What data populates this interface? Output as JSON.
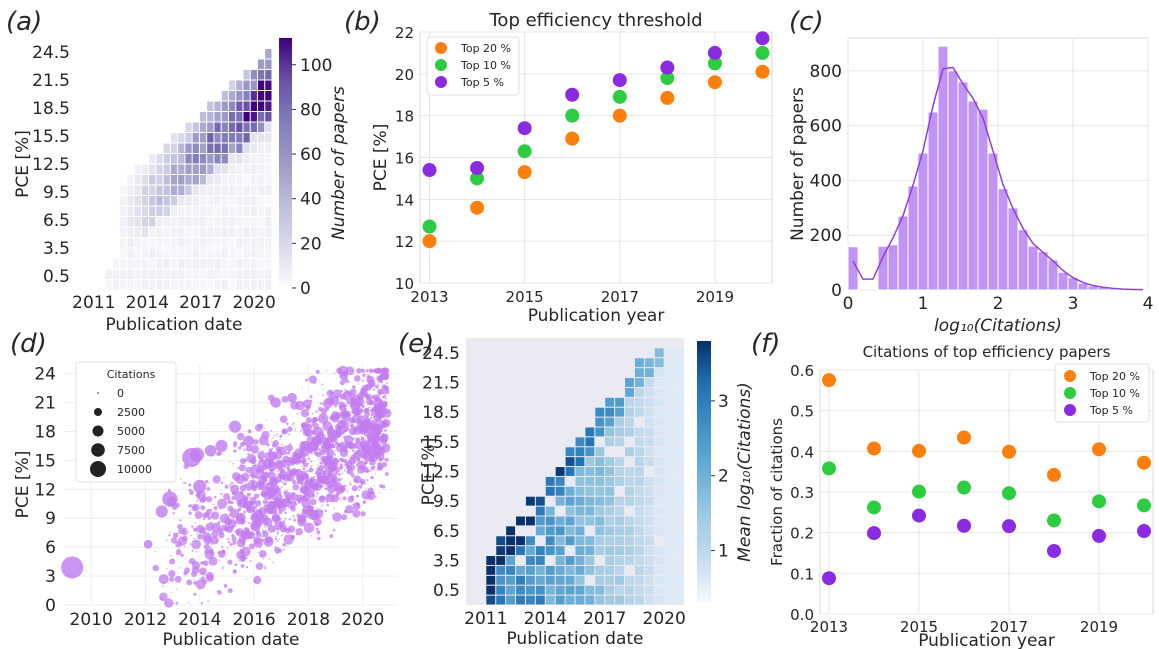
{
  "panels": [
    {
      "letter": "(a)"
    },
    {
      "letter": "(b)"
    },
    {
      "letter": "(c)"
    },
    {
      "letter": "(d)"
    },
    {
      "letter": "(e)"
    },
    {
      "letter": "(f)"
    }
  ],
  "chart_data": [
    {
      "panel": "(a)",
      "type": "heatmap",
      "xlabel": "Publication date",
      "ylabel": "PCE [%]",
      "colorbar_label": "Number of papers",
      "colormap": "Purples",
      "x_ticks": [
        "2011",
        "2014",
        "2017",
        "2020"
      ],
      "y_ticks": [
        "0.5",
        "3.5",
        "6.5",
        "9.5",
        "12.5",
        "15.5",
        "18.5",
        "21.5",
        "24.5"
      ],
      "colorbar_ticks": [
        "0",
        "20",
        "40",
        "60",
        "80",
        "100"
      ],
      "xlim": [
        2010,
        2021
      ],
      "ylim": [
        -1,
        26
      ],
      "vmax": 112
    },
    {
      "panel": "(b)",
      "type": "scatter",
      "title": "Top efficiency threshold",
      "xlabel": "Publication year",
      "ylabel": "PCE [%]",
      "xlim": [
        2012.8,
        2020.2
      ],
      "ylim": [
        10,
        22
      ],
      "x_ticks": [
        "2013",
        "2015",
        "2017",
        "2019"
      ],
      "y_ticks": [
        "10",
        "12",
        "14",
        "16",
        "18",
        "20",
        "22"
      ],
      "x": [
        2013,
        2014,
        2015,
        2016,
        2017,
        2018,
        2019,
        2020
      ],
      "series": [
        {
          "name": "Top 20 %",
          "color": "#ff7f0e",
          "values": [
            12.0,
            13.6,
            15.3,
            16.9,
            18.0,
            18.85,
            19.6,
            20.1
          ]
        },
        {
          "name": "Top 10 %",
          "color": "#2ecc40",
          "values": [
            12.7,
            15.0,
            16.3,
            18.0,
            18.9,
            19.8,
            20.5,
            21.0
          ]
        },
        {
          "name": "Top 5 %",
          "color": "#8a2be2",
          "values": [
            15.4,
            15.5,
            17.4,
            19.0,
            19.7,
            20.3,
            21.0,
            21.7
          ]
        }
      ],
      "legend": "top-left",
      "grid": true
    },
    {
      "panel": "(c)",
      "type": "bar",
      "xlabel": "log₁₀(Citations)",
      "ylabel": "Number of papers",
      "xlim": [
        0,
        4
      ],
      "ylim": [
        0,
        920
      ],
      "x_ticks": [
        "0",
        "1",
        "2",
        "3",
        "4"
      ],
      "y_ticks": [
        "0",
        "200",
        "400",
        "600",
        "800"
      ],
      "bin_width": 0.133,
      "bin_starts": [
        0.0,
        0.133,
        0.267,
        0.4,
        0.533,
        0.667,
        0.8,
        0.933,
        1.067,
        1.2,
        1.333,
        1.467,
        1.6,
        1.733,
        1.867,
        2.0,
        2.133,
        2.267,
        2.4,
        2.533,
        2.667,
        2.8,
        2.933,
        3.067,
        3.2,
        3.333,
        3.467,
        3.6,
        3.733,
        3.867
      ],
      "counts": [
        158,
        0,
        0,
        160,
        165,
        270,
        380,
        500,
        650,
        890,
        800,
        760,
        690,
        660,
        500,
        370,
        300,
        220,
        160,
        140,
        110,
        65,
        45,
        25,
        15,
        10,
        5,
        3,
        2,
        1
      ],
      "kde": true,
      "color": "#bf94f5",
      "grid": true
    },
    {
      "panel": "(d)",
      "type": "scatter",
      "xlabel": "Publication date",
      "ylabel": "PCE [%]",
      "xlim": [
        2009,
        2021.3
      ],
      "ylim": [
        0,
        25
      ],
      "x_ticks": [
        "2010",
        "2012",
        "2014",
        "2016",
        "2018",
        "2020"
      ],
      "y_ticks": [
        "0",
        "3",
        "6",
        "9",
        "12",
        "15",
        "18",
        "21",
        "24"
      ],
      "legend_title": "Citations",
      "legend_sizes": [
        "0",
        "2500",
        "5000",
        "7500",
        "10000"
      ],
      "color": "#c17bf0",
      "grid": true,
      "highlight_points": [
        {
          "x": 2009.3,
          "y": 3.9,
          "citations": 9000
        },
        {
          "x": 2012.1,
          "y": 6.3,
          "citations": 1200
        },
        {
          "x": 2012.6,
          "y": 9.7,
          "citations": 2500
        },
        {
          "x": 2012.9,
          "y": 11.0,
          "citations": 4200
        },
        {
          "x": 2013.7,
          "y": 15.3,
          "citations": 6500
        },
        {
          "x": 2013.9,
          "y": 15.6,
          "citations": 3500
        },
        {
          "x": 2014.0,
          "y": 12.3,
          "citations": 3000
        },
        {
          "x": 2014.4,
          "y": 16.0,
          "citations": 2200
        },
        {
          "x": 2014.8,
          "y": 16.5,
          "citations": 2500
        },
        {
          "x": 2015.3,
          "y": 18.5,
          "citations": 2500
        },
        {
          "x": 2015.8,
          "y": 17.0,
          "citations": 2000
        },
        {
          "x": 2016.8,
          "y": 21.0,
          "citations": 1700
        },
        {
          "x": 2017.4,
          "y": 21.5,
          "citations": 1500
        },
        {
          "x": 2019.3,
          "y": 23.8,
          "citations": 1200
        }
      ]
    },
    {
      "panel": "(e)",
      "type": "heatmap",
      "xlabel": "Publication date",
      "ylabel": "PCE [%]",
      "colorbar_label": "Mean log₁₀(Citations)",
      "colormap": "Blues",
      "x_ticks": [
        "2011",
        "2014",
        "2017",
        "2020"
      ],
      "y_ticks": [
        "0.5",
        "3.5",
        "6.5",
        "9.5",
        "12.5",
        "15.5",
        "18.5",
        "21.5",
        "24.5"
      ],
      "colorbar_ticks": [
        "1",
        "2",
        "3"
      ],
      "xlim": [
        2010,
        2021
      ],
      "ylim": [
        -1,
        26
      ],
      "vmin": 0.3,
      "vmax": 3.8
    },
    {
      "panel": "(f)",
      "type": "scatter",
      "title": "Citations of top efficiency papers",
      "xlabel": "Publication year",
      "ylabel": "Fraction of citations",
      "xlim": [
        2012.8,
        2020.2
      ],
      "ylim": [
        0,
        0.6
      ],
      "x_ticks": [
        "2013",
        "2015",
        "2017",
        "2019"
      ],
      "y_ticks": [
        "0.0",
        "0.1",
        "0.2",
        "0.3",
        "0.4",
        "0.5",
        "0.6"
      ],
      "x": [
        2013,
        2014,
        2015,
        2016,
        2017,
        2018,
        2019,
        2020
      ],
      "series": [
        {
          "name": "Top 20 %",
          "color": "#ff7f0e",
          "values": [
            0.575,
            0.407,
            0.401,
            0.434,
            0.399,
            0.342,
            0.405,
            0.372
          ]
        },
        {
          "name": "Top 10 %",
          "color": "#2ecc40",
          "values": [
            0.358,
            0.262,
            0.301,
            0.311,
            0.297,
            0.23,
            0.277,
            0.267
          ]
        },
        {
          "name": "Top 5 %",
          "color": "#8a2be2",
          "values": [
            0.088,
            0.199,
            0.242,
            0.217,
            0.216,
            0.155,
            0.192,
            0.204
          ]
        }
      ],
      "legend": "top-right",
      "grid": true
    }
  ]
}
